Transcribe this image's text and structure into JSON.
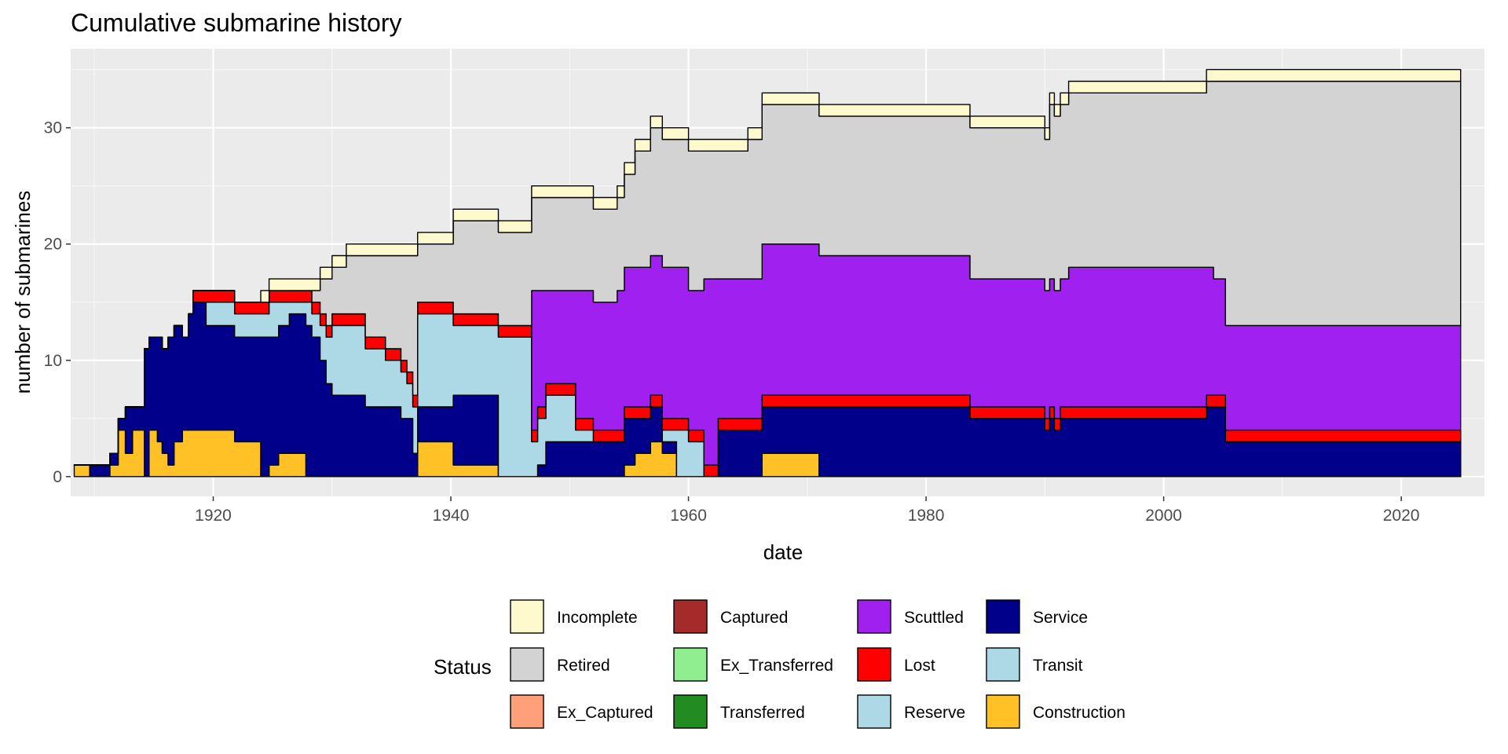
{
  "chart_data": {
    "type": "area",
    "stacked": true,
    "step": true,
    "title": "Cumulative submarine history",
    "xlabel": "date",
    "ylabel": "number of submarines",
    "xlim": [
      1908,
      2027
    ],
    "ylim": [
      -1.7,
      36.8
    ],
    "xticks": [
      1920,
      1940,
      1960,
      1980,
      2000,
      2020
    ],
    "yticks": [
      0,
      10,
      20,
      30
    ],
    "grid": true,
    "legend_title": "Status",
    "legend_position": "bottom",
    "legend_entries": [
      {
        "label": "Incomplete",
        "color": "#FFFACD"
      },
      {
        "label": "Retired",
        "color": "#D3D3D3"
      },
      {
        "label": "Ex_Captured",
        "color": "#FFA07A"
      },
      {
        "label": "Captured",
        "color": "#A52A2A"
      },
      {
        "label": "Ex_Transferred",
        "color": "#90EE90"
      },
      {
        "label": "Transferred",
        "color": "#228B22"
      },
      {
        "label": "Scuttled",
        "color": "#A020F0"
      },
      {
        "label": "Lost",
        "color": "#FF0000"
      },
      {
        "label": "Reserve",
        "color": "#ADD8E6"
      },
      {
        "label": "Service",
        "color": "#00008B"
      },
      {
        "label": "Transit",
        "color": "#ADD8E6"
      },
      {
        "label": "Construction",
        "color": "#FFC125"
      }
    ],
    "x": [
      1908.3,
      1909.6,
      1911.3,
      1912.0,
      1912.6,
      1913.2,
      1914.2,
      1914.6,
      1915.3,
      1915.7,
      1916.2,
      1916.7,
      1917.4,
      1917.9,
      1918.3,
      1918.9,
      1919.4,
      1921.8,
      1924.0,
      1924.7,
      1925.5,
      1926.4,
      1927.8,
      1928.3,
      1929.0,
      1929.5,
      1930.0,
      1931.2,
      1932.8,
      1933.5,
      1934.5,
      1935.8,
      1936.3,
      1936.8,
      1937.2,
      1940.2,
      1943.0,
      1944.0,
      1945.0,
      1946.2,
      1946.8,
      1947.3,
      1948.0,
      1950.5,
      1952.0,
      1954.0,
      1954.6,
      1955.5,
      1956.8,
      1957.8,
      1959.0,
      1960.0,
      1961.3,
      1962.5,
      1965.0,
      1966.2,
      1971.0,
      1981.5,
      1983.7,
      1989.6,
      1990.0,
      1990.4,
      1990.8,
      1991.3,
      1992.0,
      2001.8,
      2003.6,
      2004.2,
      2005.2,
      2025.0
    ],
    "series": [
      {
        "name": "Construction",
        "values": [
          1,
          0,
          1,
          4,
          2,
          4,
          0,
          4,
          3,
          2,
          1,
          3,
          4,
          4,
          4,
          4,
          4,
          3,
          0,
          1,
          2,
          2,
          0,
          0,
          0,
          0,
          0,
          0,
          0,
          0,
          0,
          0,
          0,
          0,
          3,
          1,
          1,
          0,
          0,
          0,
          0,
          0,
          0,
          0,
          0,
          0,
          1,
          2,
          3,
          2,
          0,
          0,
          0,
          0,
          0,
          2,
          0,
          0,
          0,
          0,
          0,
          0,
          0,
          0,
          0,
          0,
          0,
          0,
          0,
          0
        ]
      },
      {
        "name": "Service",
        "values": [
          0,
          1,
          1,
          1,
          4,
          2,
          11,
          8,
          9,
          9,
          11,
          10,
          8,
          10,
          11,
          11,
          9,
          9,
          12,
          11,
          11,
          12,
          13,
          12,
          10,
          8,
          7,
          7,
          6,
          6,
          6,
          5,
          5,
          2,
          3,
          6,
          6,
          0,
          0,
          0,
          0,
          1,
          3,
          3,
          3,
          3,
          4,
          3,
          3,
          1,
          0,
          0,
          0,
          4,
          4,
          4,
          6,
          6,
          5,
          5,
          4,
          5,
          4,
          5,
          5,
          5,
          6,
          6,
          3,
          0
        ]
      },
      {
        "name": "Reserve",
        "values": [
          0,
          0,
          0,
          0,
          0,
          0,
          0,
          0,
          0,
          0,
          0,
          0,
          0,
          0,
          0,
          0,
          2,
          2,
          2,
          3,
          2,
          1,
          2,
          2,
          3,
          4,
          6,
          6,
          5,
          5,
          4,
          4,
          3,
          4,
          8,
          6,
          6,
          12,
          12,
          12,
          3,
          4,
          4,
          1,
          0,
          0,
          0,
          0,
          0,
          1,
          4,
          3,
          0,
          0,
          0,
          0,
          0,
          0,
          0,
          0,
          0,
          0,
          0,
          0,
          0,
          0,
          0,
          0,
          0,
          0
        ]
      },
      {
        "name": "Lost",
        "values": [
          0,
          0,
          0,
          0,
          0,
          0,
          0,
          0,
          0,
          0,
          0,
          0,
          0,
          0,
          1,
          1,
          1,
          1,
          1,
          1,
          1,
          1,
          1,
          1,
          1,
          1,
          1,
          1,
          1,
          1,
          1,
          1,
          1,
          1,
          1,
          1,
          1,
          1,
          1,
          1,
          1,
          1,
          1,
          1,
          1,
          1,
          1,
          1,
          1,
          1,
          1,
          1,
          1,
          1,
          1,
          1,
          1,
          1,
          1,
          1,
          1,
          1,
          1,
          1,
          1,
          1,
          1,
          1,
          1,
          1
        ]
      },
      {
        "name": "Scuttled",
        "values": [
          0,
          0,
          0,
          0,
          0,
          0,
          0,
          0,
          0,
          0,
          0,
          0,
          0,
          0,
          0,
          0,
          0,
          0,
          0,
          0,
          0,
          0,
          0,
          0,
          0,
          0,
          0,
          0,
          0,
          0,
          0,
          0,
          0,
          0,
          0,
          0,
          0,
          0,
          0,
          0,
          12,
          10,
          8,
          11,
          11,
          12,
          12,
          12,
          12,
          13,
          13,
          12,
          16,
          12,
          12,
          13,
          12,
          12,
          11,
          11,
          11,
          11,
          11,
          11,
          12,
          12,
          11,
          10,
          9,
          12
        ]
      },
      {
        "name": "Retired",
        "values": [
          0,
          0,
          0,
          0,
          0,
          0,
          0,
          0,
          0,
          0,
          0,
          0,
          0,
          0,
          0,
          0,
          0,
          0,
          0,
          0,
          0,
          0,
          0,
          1,
          3,
          4,
          4,
          5,
          7,
          7,
          8,
          9,
          10,
          12,
          5,
          8,
          8,
          8,
          8,
          8,
          8,
          8,
          8,
          8,
          8,
          8,
          8,
          10,
          11,
          11,
          11,
          12,
          11,
          11,
          12,
          12,
          12,
          12,
          13,
          13,
          13,
          15,
          15,
          15,
          15,
          15,
          16,
          17,
          21,
          21
        ]
      },
      {
        "name": "Incomplete",
        "values": [
          0,
          0,
          0,
          0,
          0,
          0,
          0,
          0,
          0,
          0,
          0,
          0,
          0,
          0,
          0,
          0,
          0,
          0,
          1,
          1,
          1,
          1,
          1,
          1,
          1,
          1,
          1,
          1,
          1,
          1,
          1,
          1,
          1,
          1,
          1,
          1,
          1,
          1,
          1,
          1,
          1,
          1,
          1,
          1,
          1,
          1,
          1,
          1,
          1,
          1,
          1,
          1,
          1,
          1,
          1,
          1,
          1,
          1,
          1,
          1,
          1,
          1,
          1,
          1,
          1,
          1,
          1,
          1,
          1,
          1
        ]
      }
    ]
  }
}
